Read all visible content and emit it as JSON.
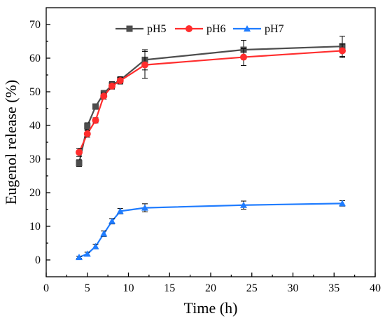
{
  "chart_data": {
    "type": "line",
    "title": "",
    "xlabel": "Time (h)",
    "ylabel": "Eugenol release (%)",
    "xlim": [
      0,
      40
    ],
    "ylim": [
      -5,
      75
    ],
    "x_ticks": [
      0,
      5,
      10,
      15,
      20,
      25,
      30,
      35,
      40
    ],
    "y_ticks": [
      0,
      10,
      20,
      30,
      40,
      50,
      60,
      70
    ],
    "grid": false,
    "legend_position": "top-center",
    "series": [
      {
        "name": "pH5",
        "color": "#4d4d4d",
        "marker": "square",
        "x": [
          4,
          5,
          6,
          7,
          8,
          9,
          12,
          24,
          36
        ],
        "y": [
          28.8,
          39.8,
          45.6,
          49.5,
          52.0,
          53.5,
          59.5,
          62.5,
          63.5
        ],
        "err": [
          1.0,
          1.0,
          0.8,
          0.9,
          1.0,
          1.0,
          3.0,
          2.8,
          3.0
        ]
      },
      {
        "name": "pH6",
        "color": "#ff2d2d",
        "marker": "circle",
        "x": [
          4,
          5,
          6,
          7,
          8,
          9,
          12,
          24,
          36
        ],
        "y": [
          32.0,
          37.5,
          41.5,
          48.7,
          51.7,
          53.3,
          58.0,
          60.3,
          62.2
        ],
        "err": [
          1.2,
          1.0,
          0.8,
          0.9,
          0.9,
          1.0,
          4.0,
          2.5,
          2.0
        ]
      },
      {
        "name": "pH7",
        "color": "#1f7cff",
        "marker": "triangle",
        "x": [
          4,
          5,
          6,
          7,
          8,
          9,
          12,
          24,
          36
        ],
        "y": [
          0.8,
          1.8,
          4.0,
          7.8,
          11.5,
          14.5,
          15.5,
          16.3,
          16.8
        ],
        "err": [
          0.3,
          0.5,
          0.7,
          0.8,
          0.8,
          0.8,
          1.2,
          1.2,
          0.8
        ]
      }
    ]
  }
}
